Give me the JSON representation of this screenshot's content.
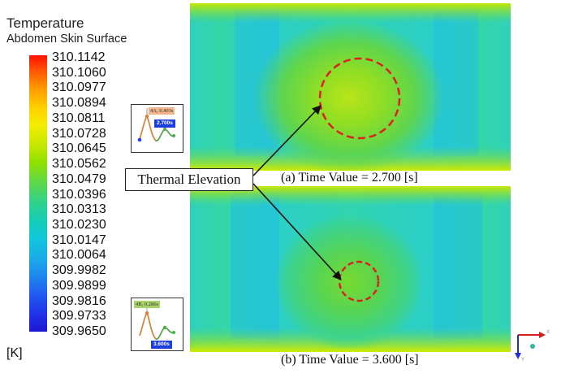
{
  "legend": {
    "title": "Temperature",
    "subtitle": "Abdomen Skin Surface",
    "unit": "[K]",
    "ticks": [
      "310.1142",
      "310.1060",
      "310.0977",
      "310.0894",
      "310.0811",
      "310.0728",
      "310.0645",
      "310.0562",
      "310.0479",
      "310.0396",
      "310.0313",
      "310.0230",
      "310.0147",
      "310.0064",
      "309.9982",
      "309.9899",
      "309.9816",
      "309.9733",
      "309.9650"
    ],
    "max_color": "#ff1000",
    "min_color": "#1e18d0"
  },
  "panel_a": {
    "caption": "(a) Time Value = 2.700 [s]",
    "inset_tag": "4A, 0.403s",
    "inset_time": "2.700s",
    "inset_tag_color": "#f2b48a"
  },
  "panel_b": {
    "caption": "(b) Time Value = 3.600 [s]",
    "inset_tag": "4B, 0.286s",
    "inset_time": "3.600s",
    "inset_tag_color": "#a9d46a"
  },
  "callout": {
    "label": "Thermal Elevation",
    "circle_color": "#dd1f1f"
  },
  "axes_triad": {
    "x_label": "X",
    "y_label": "Y",
    "x_color": "#d21f1f",
    "y_color": "#1f2fd2",
    "z_color": "#2bb7a0"
  }
}
